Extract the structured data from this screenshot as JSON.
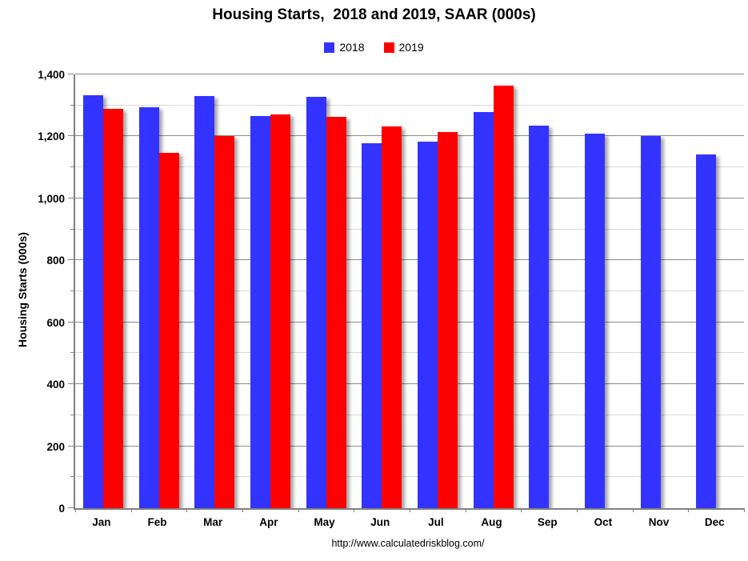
{
  "chart_data": {
    "type": "bar",
    "title": "Housing Starts,  2018 and 2019, SAAR (000s)",
    "ylabel": "Housing Starts (000s)",
    "categories": [
      "Jan",
      "Feb",
      "Mar",
      "Apr",
      "May",
      "Jun",
      "Jul",
      "Aug",
      "Sep",
      "Oct",
      "Nov",
      "Dec"
    ],
    "series": [
      {
        "name": "2018",
        "color": "#3333ff",
        "values": [
          1334,
          1295,
          1330,
          1266,
          1329,
          1177,
          1183,
          1279,
          1236,
          1210,
          1201,
          1142
        ]
      },
      {
        "name": "2019",
        "color": "#ff0000",
        "values": [
          1290,
          1148,
          1200,
          1270,
          1263,
          1232,
          1214,
          1364,
          null,
          null,
          null,
          null
        ]
      }
    ],
    "ylim": [
      0,
      1400
    ],
    "ytick_step": 200,
    "minor_grid_step": 100,
    "ytick_label_format": "thousands-comma",
    "grid": "on",
    "legend_position": "top-center"
  },
  "footer": {
    "source_url_text": "http://www.calculatedriskblog.com/"
  }
}
